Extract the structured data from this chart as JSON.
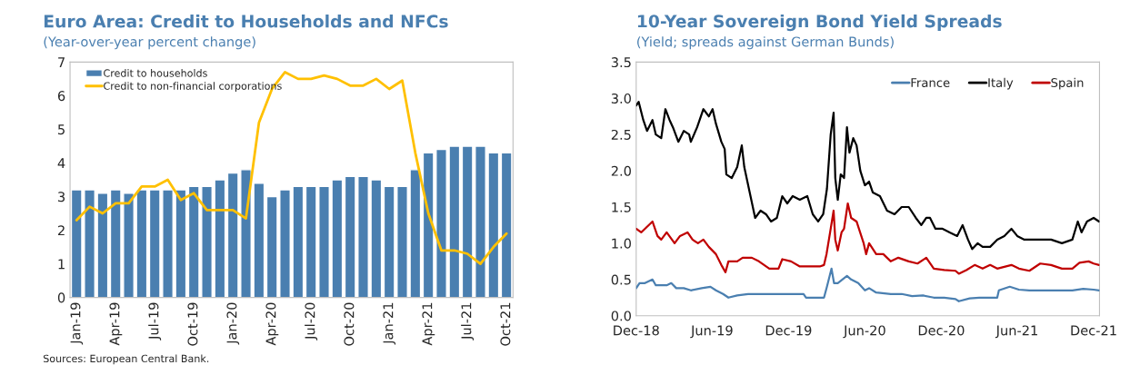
{
  "chart_data": [
    {
      "type": "bar",
      "title": "Euro Area: Credit to Households and NFCs",
      "subtitle": "(Year-over-year percent change)",
      "categories": [
        "Jan-19",
        null,
        null,
        "Apr-19",
        null,
        null,
        "Jul-19",
        null,
        null,
        "Oct-19",
        null,
        null,
        "Jan-20",
        null,
        null,
        "Apr-20",
        null,
        null,
        "Jul-20",
        null,
        null,
        "Oct-20",
        null,
        null,
        "Jan-21",
        null,
        null,
        "Apr-21",
        null,
        null,
        "Jul-21",
        null,
        null,
        "Oct-21"
      ],
      "series": [
        {
          "name": "Credit to households",
          "type": "bar",
          "color": "#4a7fb0",
          "values": [
            3.2,
            3.2,
            3.1,
            3.2,
            3.1,
            3.2,
            3.2,
            3.2,
            3.2,
            3.3,
            3.3,
            3.5,
            3.7,
            3.8,
            3.4,
            3.0,
            3.2,
            3.3,
            3.3,
            3.3,
            3.5,
            3.6,
            3.6,
            3.5,
            3.3,
            3.3,
            3.8,
            4.3,
            4.4,
            4.5,
            4.5,
            4.5,
            4.3,
            4.3
          ]
        },
        {
          "name": "Credit to non-financial corporations",
          "type": "line",
          "color": "#ffc000",
          "values": [
            2.3,
            2.7,
            2.5,
            2.8,
            2.8,
            3.3,
            3.3,
            3.5,
            2.9,
            3.1,
            2.6,
            2.6,
            2.6,
            2.35,
            5.2,
            6.2,
            6.7,
            6.5,
            6.5,
            6.6,
            6.5,
            6.3,
            6.3,
            6.5,
            6.2,
            6.45,
            4.3,
            2.5,
            1.4,
            1.4,
            1.3,
            1.0,
            1.5,
            1.9
          ]
        }
      ],
      "ylim": [
        0,
        7
      ],
      "yticks": [
        0,
        1,
        2,
        3,
        4,
        5,
        6,
        7
      ],
      "grid": false,
      "legend": "top left",
      "annotations": [
        "Sources: European Central Bank."
      ]
    },
    {
      "type": "line",
      "title": "10-Year Sovereign Bond Yield Spreads",
      "subtitle": "(Yield; spreads against German Bunds)",
      "series": [
        {
          "name": "France",
          "color": "#4a7fb0",
          "x": [
            "2018-12-01",
            "2018-12-09",
            "2018-12-22",
            "2019-01-09",
            "2019-01-17",
            "2019-02-12",
            "2019-02-23",
            "2019-03-07",
            "2019-03-25",
            "2019-04-11",
            "2019-05-07",
            "2019-05-28",
            "2019-06-10",
            "2019-06-27",
            "2019-07-10",
            "2019-07-31",
            "2019-08-26",
            "2019-10-08",
            "2019-11-11",
            "2019-12-07",
            "2020-01-06",
            "2020-01-12",
            "2020-02-14",
            "2020-02-24",
            "2020-03-02",
            "2020-03-13",
            "2020-03-19",
            "2020-03-28",
            "2020-04-08",
            "2020-04-19",
            "2020-04-29",
            "2020-05-16",
            "2020-06-01",
            "2020-06-11",
            "2020-06-28",
            "2020-08-02",
            "2020-08-28",
            "2020-09-22",
            "2020-10-18",
            "2020-11-13",
            "2020-12-08",
            "2021-01-04",
            "2021-01-12",
            "2021-02-07",
            "2021-03-02",
            "2021-04-14",
            "2021-04-18",
            "2021-05-14",
            "2021-06-05",
            "2021-06-30",
            "2021-08-04",
            "2021-09-08",
            "2021-10-11",
            "2021-11-06",
            "2021-12-01",
            "2021-12-14"
          ],
          "values": [
            0.38,
            0.45,
            0.45,
            0.5,
            0.42,
            0.42,
            0.45,
            0.38,
            0.38,
            0.35,
            0.38,
            0.4,
            0.35,
            0.3,
            0.25,
            0.28,
            0.3,
            0.3,
            0.3,
            0.3,
            0.3,
            0.25,
            0.25,
            0.25,
            0.4,
            0.65,
            0.45,
            0.45,
            0.5,
            0.55,
            0.5,
            0.45,
            0.35,
            0.38,
            0.32,
            0.3,
            0.3,
            0.27,
            0.28,
            0.25,
            0.25,
            0.23,
            0.2,
            0.24,
            0.25,
            0.25,
            0.35,
            0.4,
            0.36,
            0.35,
            0.35,
            0.35,
            0.35,
            0.37,
            0.36,
            0.35
          ]
        },
        {
          "name": "Italy",
          "color": "#000000",
          "x": [
            "2018-12-01",
            "2018-12-07",
            "2018-12-18",
            "2018-12-27",
            "2019-01-09",
            "2019-01-17",
            "2019-01-30",
            "2019-02-09",
            "2019-02-19",
            "2019-02-27",
            "2019-03-12",
            "2019-03-25",
            "2019-04-07",
            "2019-04-11",
            "2019-04-26",
            "2019-05-11",
            "2019-05-24",
            "2019-06-02",
            "2019-06-10",
            "2019-06-23",
            "2019-07-01",
            "2019-07-05",
            "2019-07-18",
            "2019-07-31",
            "2019-08-11",
            "2019-08-17",
            "2019-08-30",
            "2019-09-12",
            "2019-09-25",
            "2019-10-08",
            "2019-10-20",
            "2019-11-03",
            "2019-11-16",
            "2019-11-28",
            "2019-12-11",
            "2019-12-28",
            "2020-01-15",
            "2020-01-28",
            "2020-02-10",
            "2020-02-22",
            "2020-03-02",
            "2020-03-11",
            "2020-03-18",
            "2020-03-22",
            "2020-03-28",
            "2020-04-04",
            "2020-04-12",
            "2020-04-19",
            "2020-04-25",
            "2020-05-04",
            "2020-05-12",
            "2020-05-21",
            "2020-06-01",
            "2020-06-11",
            "2020-06-20",
            "2020-07-07",
            "2020-07-24",
            "2020-08-11",
            "2020-08-28",
            "2020-09-14",
            "2020-10-01",
            "2020-10-14",
            "2020-10-26",
            "2020-11-04",
            "2020-11-17",
            "2020-12-04",
            "2020-12-21",
            "2021-01-08",
            "2021-01-21",
            "2021-02-03",
            "2021-02-13",
            "2021-02-26",
            "2021-03-10",
            "2021-03-28",
            "2021-04-14",
            "2021-05-01",
            "2021-05-18",
            "2021-06-01",
            "2021-06-18",
            "2021-07-09",
            "2021-07-26",
            "2021-08-21",
            "2021-09-16",
            "2021-10-11",
            "2021-10-24",
            "2021-11-02",
            "2021-11-15",
            "2021-12-01",
            "2021-12-14"
          ],
          "values": [
            2.9,
            2.95,
            2.7,
            2.55,
            2.7,
            2.5,
            2.45,
            2.85,
            2.7,
            2.6,
            2.4,
            2.55,
            2.5,
            2.4,
            2.6,
            2.85,
            2.75,
            2.85,
            2.65,
            2.4,
            2.3,
            1.95,
            1.9,
            2.05,
            2.35,
            2.05,
            1.7,
            1.35,
            1.45,
            1.4,
            1.3,
            1.35,
            1.65,
            1.55,
            1.65,
            1.6,
            1.65,
            1.4,
            1.3,
            1.4,
            1.75,
            2.5,
            2.8,
            1.9,
            1.6,
            1.95,
            1.9,
            2.6,
            2.25,
            2.45,
            2.35,
            2.0,
            1.8,
            1.85,
            1.7,
            1.65,
            1.45,
            1.4,
            1.5,
            1.5,
            1.35,
            1.25,
            1.35,
            1.35,
            1.2,
            1.2,
            1.15,
            1.1,
            1.25,
            1.05,
            0.92,
            1.0,
            0.95,
            0.95,
            1.05,
            1.1,
            1.2,
            1.1,
            1.05,
            1.05,
            1.05,
            1.05,
            1.0,
            1.05,
            1.3,
            1.15,
            1.3,
            1.35,
            1.3
          ]
        },
        {
          "name": "Spain",
          "color": "#c00000",
          "x": [
            "2018-12-01",
            "2018-12-13",
            "2019-01-09",
            "2019-01-21",
            "2019-01-30",
            "2019-02-12",
            "2019-03-03",
            "2019-03-16",
            "2019-04-03",
            "2019-04-15",
            "2019-04-28",
            "2019-05-11",
            "2019-05-24",
            "2019-06-10",
            "2019-06-23",
            "2019-07-03",
            "2019-07-10",
            "2019-07-31",
            "2019-08-13",
            "2019-09-04",
            "2019-09-21",
            "2019-10-16",
            "2019-11-07",
            "2019-11-16",
            "2019-12-07",
            "2019-12-28",
            "2020-01-19",
            "2020-02-14",
            "2020-02-24",
            "2020-03-01",
            "2020-03-11",
            "2020-03-18",
            "2020-03-22",
            "2020-03-28",
            "2020-04-06",
            "2020-04-12",
            "2020-04-21",
            "2020-04-29",
            "2020-05-12",
            "2020-05-29",
            "2020-06-04",
            "2020-06-11",
            "2020-06-28",
            "2020-07-15",
            "2020-08-02",
            "2020-08-20",
            "2020-09-14",
            "2020-10-05",
            "2020-10-26",
            "2020-11-13",
            "2020-12-08",
            "2021-01-04",
            "2021-01-12",
            "2021-01-30",
            "2021-02-19",
            "2021-03-10",
            "2021-03-28",
            "2021-04-14",
            "2021-05-18",
            "2021-06-05",
            "2021-06-30",
            "2021-07-26",
            "2021-08-21",
            "2021-09-16",
            "2021-10-11",
            "2021-10-28",
            "2021-11-19",
            "2021-12-01",
            "2021-12-14"
          ],
          "values": [
            1.2,
            1.15,
            1.3,
            1.1,
            1.05,
            1.15,
            1.0,
            1.1,
            1.15,
            1.05,
            1.0,
            1.05,
            0.95,
            0.85,
            0.7,
            0.6,
            0.75,
            0.75,
            0.8,
            0.8,
            0.75,
            0.65,
            0.65,
            0.78,
            0.75,
            0.68,
            0.68,
            0.68,
            0.7,
            0.85,
            1.2,
            1.45,
            1.05,
            0.9,
            1.15,
            1.2,
            1.55,
            1.35,
            1.3,
            1.0,
            0.85,
            1.0,
            0.85,
            0.85,
            0.75,
            0.8,
            0.75,
            0.72,
            0.8,
            0.65,
            0.63,
            0.62,
            0.58,
            0.63,
            0.7,
            0.65,
            0.7,
            0.65,
            0.7,
            0.65,
            0.62,
            0.72,
            0.7,
            0.65,
            0.65,
            0.73,
            0.75,
            0.72,
            0.7
          ]
        }
      ],
      "xlim": [
        "2018-12-01",
        "2021-12-15"
      ],
      "xticks": [
        {
          "value": "2018-12-01",
          "label": "Dec-18"
        },
        {
          "value": "2019-06-01",
          "label": "Jun-19"
        },
        {
          "value": "2019-12-01",
          "label": "Dec-19"
        },
        {
          "value": "2020-06-01",
          "label": "Jun-20"
        },
        {
          "value": "2020-12-01",
          "label": "Dec-20"
        },
        {
          "value": "2021-06-01",
          "label": "Jun-21"
        },
        {
          "value": "2021-12-01",
          "label": "Dec-21"
        }
      ],
      "ylim": [
        0,
        3.5
      ],
      "yticks": [
        {
          "value": 0,
          "label": "0.0"
        },
        {
          "value": 0.5,
          "label": "0.5"
        },
        {
          "value": 1,
          "label": "1.0"
        },
        {
          "value": 1.5,
          "label": "1.5"
        },
        {
          "value": 2,
          "label": "2.0"
        },
        {
          "value": 2.5,
          "label": "2.5"
        },
        {
          "value": 3,
          "label": "3.0"
        },
        {
          "value": 3.5,
          "label": "3.5"
        }
      ],
      "grid": false,
      "legend": "top right"
    }
  ]
}
